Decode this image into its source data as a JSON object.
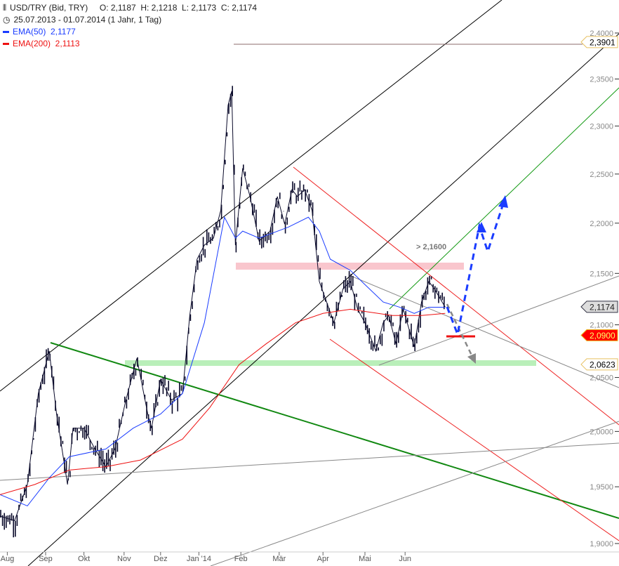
{
  "header": {
    "instrument": "USD/TRY (Bid, TRY)",
    "ohlc": "O: 2,1187  H: 2,1218  L: 2,1173  C: 2,1174",
    "range": "25.07.2013 - 01.07.2014 (1 Jahr, 1 Tag)",
    "ema50_label": "EMA(50)  2,1177",
    "ema200_label": "EMA(200)  2,1113"
  },
  "chart_data": {
    "type": "line",
    "title": "USD/TRY (Bid, TRY)",
    "yscale": "log",
    "ylim": [
      1.9,
      2.4
    ],
    "yticks": [
      {
        "v": 2.4,
        "label": "2,4000"
      },
      {
        "v": 2.35,
        "label": "2,3500"
      },
      {
        "v": 2.3,
        "label": "2,3000"
      },
      {
        "v": 2.25,
        "label": "2,2500"
      },
      {
        "v": 2.2,
        "label": "2,2000"
      },
      {
        "v": 2.15,
        "label": "2,1500"
      },
      {
        "v": 2.1,
        "label": "2,1000"
      },
      {
        "v": 2.05,
        "label": "2,0500"
      },
      {
        "v": 2.0,
        "label": "2,0000"
      },
      {
        "v": 1.95,
        "label": "1,9500"
      },
      {
        "v": 1.9,
        "label": "1,9000"
      }
    ],
    "xlim": [
      0,
      317
    ],
    "xticks": [
      {
        "t": 4,
        "label": "Aug"
      },
      {
        "t": 25,
        "label": "Sep"
      },
      {
        "t": 46,
        "label": "Okt"
      },
      {
        "t": 68,
        "label": "Nov"
      },
      {
        "t": 88,
        "label": "Dez"
      },
      {
        "t": 109,
        "label": "Jan '14"
      },
      {
        "t": 132,
        "label": "Feb"
      },
      {
        "t": 153,
        "label": "Mär"
      },
      {
        "t": 177,
        "label": "Apr"
      },
      {
        "t": 200,
        "label": "Mai"
      },
      {
        "t": 222,
        "label": "Jun"
      }
    ],
    "price": {
      "name": "USD/TRY",
      "color": "#0a0a2a",
      "points": [
        [
          0,
          1.924
        ],
        [
          8,
          1.92
        ],
        [
          15,
          1.952
        ],
        [
          21,
          2.035
        ],
        [
          27,
          2.075
        ],
        [
          31,
          2.016
        ],
        [
          37,
          1.952
        ],
        [
          40,
          2.003
        ],
        [
          46,
          2.003
        ],
        [
          52,
          1.984
        ],
        [
          58,
          1.968
        ],
        [
          63,
          1.984
        ],
        [
          69,
          2.029
        ],
        [
          75,
          2.068
        ],
        [
          81,
          2.016
        ],
        [
          83,
          2.003
        ],
        [
          88,
          2.048
        ],
        [
          94,
          2.029
        ],
        [
          100,
          2.035
        ],
        [
          104,
          2.109
        ],
        [
          108,
          2.164
        ],
        [
          112,
          2.178
        ],
        [
          117,
          2.185
        ],
        [
          121,
          2.213
        ],
        [
          125,
          2.322
        ],
        [
          127,
          2.337
        ],
        [
          129,
          2.178
        ],
        [
          133,
          2.256
        ],
        [
          137,
          2.227
        ],
        [
          142,
          2.182
        ],
        [
          148,
          2.192
        ],
        [
          152,
          2.227
        ],
        [
          156,
          2.199
        ],
        [
          160,
          2.234
        ],
        [
          163,
          2.227
        ],
        [
          167,
          2.234
        ],
        [
          171,
          2.213
        ],
        [
          175,
          2.142
        ],
        [
          179,
          2.122
        ],
        [
          183,
          2.102
        ],
        [
          188,
          2.135
        ],
        [
          192,
          2.142
        ],
        [
          196,
          2.115
        ],
        [
          200,
          2.102
        ],
        [
          206,
          2.075
        ],
        [
          210,
          2.102
        ],
        [
          213,
          2.109
        ],
        [
          217,
          2.082
        ],
        [
          221,
          2.115
        ],
        [
          227,
          2.079
        ],
        [
          231,
          2.122
        ],
        [
          235,
          2.142
        ],
        [
          238,
          2.135
        ],
        [
          244,
          2.117
        ]
      ]
    },
    "series": [
      {
        "name": "EMA(50)",
        "value_label": "2,1177",
        "color": "#1a3cff",
        "points": [
          [
            0,
            1.943
          ],
          [
            15,
            1.933
          ],
          [
            27,
            1.958
          ],
          [
            38,
            1.977
          ],
          [
            58,
            1.984
          ],
          [
            73,
            2.003
          ],
          [
            88,
            2.016
          ],
          [
            100,
            2.035
          ],
          [
            112,
            2.102
          ],
          [
            123,
            2.206
          ],
          [
            129,
            2.185
          ],
          [
            133,
            2.192
          ],
          [
            142,
            2.185
          ],
          [
            158,
            2.196
          ],
          [
            169,
            2.206
          ],
          [
            175,
            2.192
          ],
          [
            181,
            2.164
          ],
          [
            192,
            2.153
          ],
          [
            200,
            2.139
          ],
          [
            210,
            2.122
          ],
          [
            219,
            2.117
          ],
          [
            227,
            2.111
          ],
          [
            235,
            2.117
          ],
          [
            244,
            2.117
          ]
        ]
      },
      {
        "name": "EMA(200)",
        "value_label": "2,1113",
        "color": "#ee1111",
        "points": [
          [
            0,
            1.943
          ],
          [
            19,
            1.952
          ],
          [
            38,
            1.965
          ],
          [
            58,
            1.968
          ],
          [
            77,
            1.974
          ],
          [
            100,
            1.993
          ],
          [
            115,
            2.022
          ],
          [
            131,
            2.062
          ],
          [
            146,
            2.082
          ],
          [
            162,
            2.102
          ],
          [
            177,
            2.111
          ],
          [
            192,
            2.115
          ],
          [
            215,
            2.109
          ],
          [
            231,
            2.109
          ],
          [
            244,
            2.111
          ]
        ]
      }
    ],
    "levels": [
      {
        "v": 2.3901,
        "label": "2,3901",
        "kind": "high"
      },
      {
        "v": 2.1174,
        "label": "2,1174",
        "kind": "last"
      },
      {
        "v": 2.09,
        "label": "2,0900",
        "kind": "stop"
      },
      {
        "v": 2.0623,
        "label": "2,0623",
        "kind": "support"
      }
    ],
    "annotations": [
      {
        "text": "> 2,1600",
        "v": 2.16
      }
    ],
    "grid": false
  }
}
